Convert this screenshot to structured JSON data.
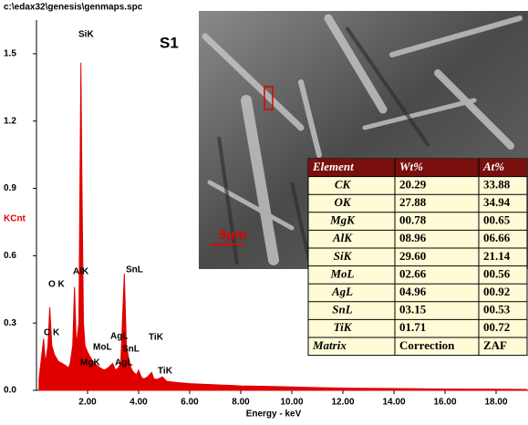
{
  "chart_data": {
    "type": "area",
    "title": "c:\\edax32\\genesis\\genmaps.spc",
    "ylabel": "KCnt",
    "xlabel": "Energy - keV",
    "color": "#e00000",
    "x": [
      0.1,
      0.2,
      0.28,
      0.35,
      0.45,
      0.52,
      0.6,
      0.7,
      0.85,
      1.0,
      1.15,
      1.25,
      1.32,
      1.42,
      1.49,
      1.56,
      1.66,
      1.74,
      1.78,
      1.84,
      1.9,
      2.0,
      2.1,
      2.2,
      2.29,
      2.38,
      2.5,
      2.65,
      2.8,
      2.98,
      3.1,
      3.2,
      3.3,
      3.44,
      3.52,
      3.6,
      3.7,
      3.8,
      3.92,
      4.0,
      4.1,
      4.2,
      4.35,
      4.51,
      4.6,
      4.75,
      4.93,
      5.1,
      5.5,
      6,
      7,
      8,
      9,
      10,
      11,
      12,
      14,
      16,
      18,
      19.2
    ],
    "values": [
      0.05,
      0.15,
      0.23,
      0.12,
      0.2,
      0.37,
      0.2,
      0.16,
      0.13,
      0.12,
      0.11,
      0.1,
      0.12,
      0.2,
      0.46,
      0.2,
      0.3,
      1.46,
      0.93,
      0.3,
      0.2,
      0.17,
      0.15,
      0.13,
      0.12,
      0.11,
      0.1,
      0.09,
      0.1,
      0.12,
      0.09,
      0.1,
      0.12,
      0.52,
      0.2,
      0.15,
      0.1,
      0.08,
      0.07,
      0.09,
      0.06,
      0.05,
      0.06,
      0.08,
      0.05,
      0.05,
      0.06,
      0.04,
      0.035,
      0.03,
      0.025,
      0.02,
      0.018,
      0.015,
      0.012,
      0.01,
      0.008,
      0.006,
      0.005,
      0.004
    ],
    "xlim": [
      0,
      19.25
    ],
    "ylim": [
      0,
      1.65
    ],
    "xticks": [
      {
        "value": 2,
        "label": "2.00"
      },
      {
        "value": 4,
        "label": "4.00"
      },
      {
        "value": 6,
        "label": "6.00"
      },
      {
        "value": 8,
        "label": "8.00"
      },
      {
        "value": 10,
        "label": "10.00"
      },
      {
        "value": 12,
        "label": "12.00"
      },
      {
        "value": 14,
        "label": "14.00"
      },
      {
        "value": 16,
        "label": "16.00"
      },
      {
        "value": 18,
        "label": "18.00"
      }
    ],
    "yticks": [
      {
        "value": 0,
        "label": "0.0"
      },
      0.3,
      0.6,
      0.9,
      1.2,
      1.5
    ],
    "annotations": [
      "C K",
      "O K",
      "MgK",
      "AlK",
      "SiK",
      "MoL",
      "AgL",
      "SnL",
      "SnL",
      "AgL",
      "TiK",
      "TiK"
    ]
  },
  "image": {
    "label": "S1",
    "scale_bar": "5µm"
  },
  "table": {
    "header": [
      "Element",
      "Wt%",
      "At%"
    ],
    "rows": [
      [
        "CK",
        "20.29",
        "33.88"
      ],
      [
        "OK",
        "27.88",
        "34.94"
      ],
      [
        "MgK",
        "00.78",
        "00.65"
      ],
      [
        "AlK",
        "08.96",
        "06.66"
      ],
      [
        "SiK",
        "29.60",
        "21.14"
      ],
      [
        "MoL",
        "02.66",
        "00.56"
      ],
      [
        "AgL",
        "04.96",
        "00.92"
      ],
      [
        "SnL",
        "03.15",
        "00.53"
      ],
      [
        "TiK",
        "01.71",
        "00.72"
      ],
      [
        "Matrix",
        "Correction",
        "ZAF"
      ]
    ]
  }
}
